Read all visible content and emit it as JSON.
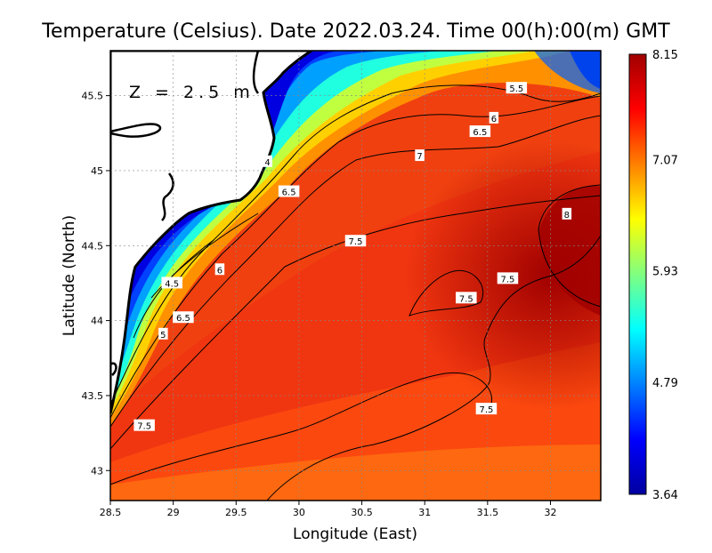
{
  "title": "Temperature (Celsius). Date 2022.03.24. Time 00(h):00(m) GMT",
  "depth_label": "Z = 2.5 m",
  "xlabel": "Longitude (East)",
  "ylabel": "Latitude (North)",
  "xlim": [
    28.5,
    32.4
  ],
  "ylim": [
    42.8,
    45.8
  ],
  "x_ticks": [
    "28.5",
    "29",
    "29.5",
    "30",
    "30.5",
    "31",
    "31.5",
    "32"
  ],
  "y_ticks": [
    "43",
    "43.5",
    "44",
    "44.5",
    "45",
    "45.5"
  ],
  "colorbar": {
    "min": 3.64,
    "max": 8.15,
    "labels": [
      "8.15",
      "7.07",
      "5.93",
      "4.79",
      "3.64"
    ],
    "colors": [
      "#0000a0",
      "#0000ff",
      "#0080ff",
      "#00ffff",
      "#80ff80",
      "#ffff00",
      "#ff8000",
      "#ff0000",
      "#a00000"
    ]
  },
  "contour_labels": [
    {
      "text": "4",
      "lon": 29.75,
      "lat": 45.06
    },
    {
      "text": "4.5",
      "lon": 28.99,
      "lat": 44.25
    },
    {
      "text": "5",
      "lon": 28.92,
      "lat": 43.91
    },
    {
      "text": "5.5",
      "lon": 31.73,
      "lat": 45.55
    },
    {
      "text": "6",
      "lon": 31.55,
      "lat": 45.35
    },
    {
      "text": "6",
      "lon": 29.37,
      "lat": 44.34
    },
    {
      "text": "6.5",
      "lon": 29.92,
      "lat": 44.86
    },
    {
      "text": "6.5",
      "lon": 31.44,
      "lat": 45.26
    },
    {
      "text": "6.5",
      "lon": 29.08,
      "lat": 44.02
    },
    {
      "text": "7",
      "lon": 30.96,
      "lat": 45.1
    },
    {
      "text": "7.5",
      "lon": 30.45,
      "lat": 44.53
    },
    {
      "text": "7.5",
      "lon": 31.66,
      "lat": 44.28
    },
    {
      "text": "7.5",
      "lon": 31.33,
      "lat": 44.15
    },
    {
      "text": "7.5",
      "lon": 31.49,
      "lat": 43.41
    },
    {
      "text": "7.5",
      "lon": 28.77,
      "lat": 43.3
    },
    {
      "text": "8",
      "lon": 32.13,
      "lat": 44.71
    }
  ]
}
